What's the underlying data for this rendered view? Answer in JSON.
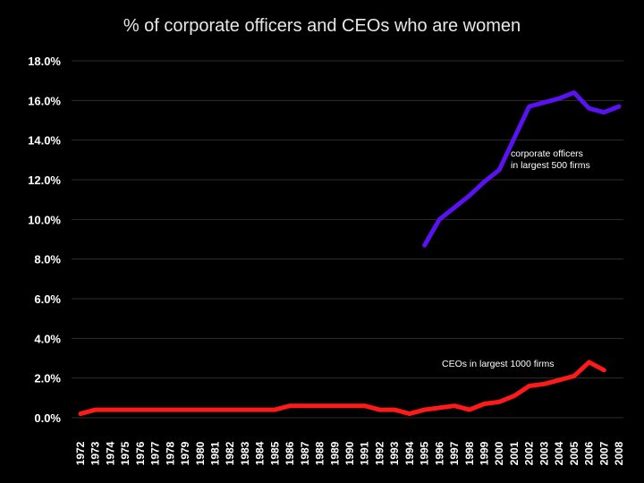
{
  "chart_data": {
    "type": "line",
    "title": "% of corporate officers and CEOs who are women",
    "xlabel": "",
    "ylabel": "",
    "ylim": [
      0,
      18
    ],
    "y_ticks": [
      "0.0%",
      "2.0%",
      "4.0%",
      "6.0%",
      "8.0%",
      "10.0%",
      "12.0%",
      "14.0%",
      "16.0%",
      "18.0%"
    ],
    "x": [
      "1972",
      "1973",
      "1974",
      "1975",
      "1976",
      "1977",
      "1978",
      "1979",
      "1980",
      "1981",
      "1982",
      "1983",
      "1984",
      "1985",
      "1986",
      "1987",
      "1988",
      "1989",
      "1990",
      "1991",
      "1992",
      "1993",
      "1994",
      "1995",
      "1996",
      "1997",
      "1998",
      "1999",
      "2000",
      "2001",
      "2002",
      "2003",
      "2004",
      "2005",
      "2006",
      "2007",
      "2008"
    ],
    "grid": true,
    "series": [
      {
        "color": "#5a12f0",
        "values": [
          null,
          null,
          null,
          null,
          null,
          null,
          null,
          null,
          null,
          null,
          null,
          null,
          null,
          null,
          null,
          null,
          null,
          null,
          null,
          null,
          null,
          null,
          null,
          8.7,
          10.0,
          10.6,
          11.2,
          11.9,
          12.5,
          14.1,
          15.7,
          15.9,
          16.1,
          16.4,
          15.6,
          15.4,
          15.7
        ]
      },
      {
        "color": "#ff1a1a",
        "values": [
          0.2,
          0.4,
          0.4,
          0.4,
          0.4,
          0.4,
          0.4,
          0.4,
          0.4,
          0.4,
          0.4,
          0.4,
          0.4,
          0.4,
          0.6,
          0.6,
          0.6,
          0.6,
          0.6,
          0.6,
          0.4,
          0.4,
          0.2,
          0.4,
          0.5,
          0.6,
          0.4,
          0.7,
          0.8,
          1.1,
          1.6,
          1.7,
          1.9,
          2.1,
          2.8,
          2.4,
          null
        ]
      }
    ],
    "annotations": [
      {
        "lines": [
          "corporate officers",
          "in largest 500 firms"
        ]
      },
      {
        "lines": [
          "CEOs in largest 1000 firms"
        ]
      }
    ]
  }
}
